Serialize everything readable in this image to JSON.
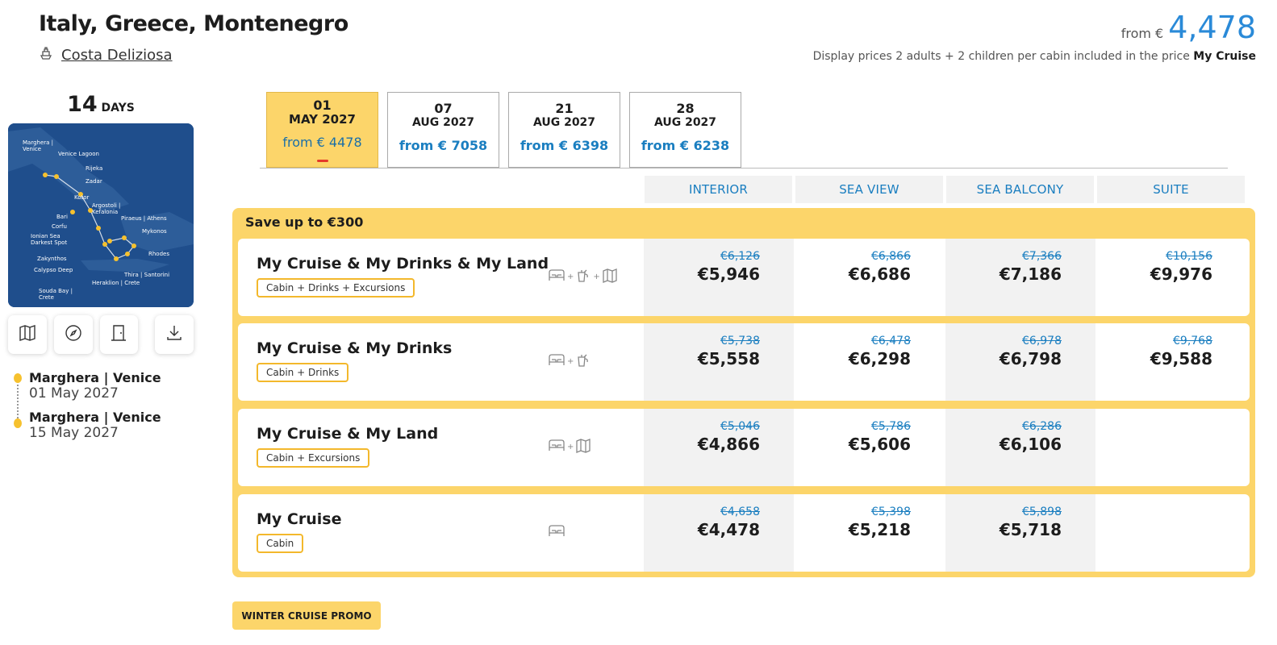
{
  "header": {
    "title": "Italy, Greece, Montenegro",
    "ship_name": "Costa Deliziosa",
    "from_label": "from €",
    "from_price": "4,478",
    "note_prefix": "Display prices 2 adults + 2 children per cabin included in the price",
    "note_bold": "My Cruise"
  },
  "left": {
    "days_number": "14",
    "days_label": "DAYS",
    "map_labels": [
      "Marghera | Venice",
      "Venice Lagoon",
      "Rijeka",
      "Zadar",
      "Kotor",
      "Argostoli | Kefalonia",
      "Bari",
      "Piraeus | Athens",
      "Corfu",
      "Mykonos",
      "Ionian Sea Darkest Spot",
      "Rhodes",
      "Zakynthos",
      "Calypso Deep",
      "Thira | Santorini",
      "Heraklion | Crete",
      "Souda Bay | Crete"
    ],
    "map_buttons": [
      "map-icon",
      "compass-icon",
      "door-icon",
      "download-icon"
    ],
    "itinerary": [
      {
        "port": "Marghera | Venice",
        "date": "01 May 2027"
      },
      {
        "port": "Marghera | Venice",
        "date": "15 May 2027"
      }
    ]
  },
  "date_tabs": [
    {
      "day": "01",
      "month": "MAY 2027",
      "from": "from € 4478",
      "active": true
    },
    {
      "day": "07",
      "month": "AUG 2027",
      "from": "from € 7058",
      "active": false
    },
    {
      "day": "21",
      "month": "AUG 2027",
      "from": "from € 6398",
      "active": false
    },
    {
      "day": "28",
      "month": "AUG 2027",
      "from": "from € 6238",
      "active": false
    }
  ],
  "columns": [
    "INTERIOR",
    "SEA VIEW",
    "SEA BALCONY",
    "SUITE"
  ],
  "promo": {
    "title": "Save up to €300",
    "packages": [
      {
        "name": "My Cruise & My Drinks & My Land",
        "tag": "Cabin + Drinks + Excursions",
        "icons": [
          "bed-icon",
          "drinks-icon",
          "map-icon"
        ],
        "prices": [
          {
            "old": "€6,126",
            "new": "€5,946"
          },
          {
            "old": "€6,866",
            "new": "€6,686"
          },
          {
            "old": "€7,366",
            "new": "€7,186"
          },
          {
            "old": "€10,156",
            "new": "€9,976"
          }
        ]
      },
      {
        "name": "My Cruise & My Drinks",
        "tag": "Cabin + Drinks",
        "icons": [
          "bed-icon",
          "drinks-icon"
        ],
        "prices": [
          {
            "old": "€5,738",
            "new": "€5,558"
          },
          {
            "old": "€6,478",
            "new": "€6,298"
          },
          {
            "old": "€6,978",
            "new": "€6,798"
          },
          {
            "old": "€9,768",
            "new": "€9,588"
          }
        ]
      },
      {
        "name": "My Cruise & My Land",
        "tag": "Cabin + Excursions",
        "icons": [
          "bed-icon",
          "map-icon"
        ],
        "prices": [
          {
            "old": "€5,046",
            "new": "€4,866"
          },
          {
            "old": "€5,786",
            "new": "€5,606"
          },
          {
            "old": "€6,286",
            "new": "€6,106"
          },
          {
            "old": "",
            "new": ""
          }
        ]
      },
      {
        "name": "My Cruise",
        "tag": "Cabin",
        "icons": [
          "bed-icon"
        ],
        "prices": [
          {
            "old": "€4,658",
            "new": "€4,478"
          },
          {
            "old": "€5,398",
            "new": "€5,218"
          },
          {
            "old": "€5,898",
            "new": "€5,718"
          },
          {
            "old": "",
            "new": ""
          }
        ]
      }
    ]
  },
  "winter_button": "WINTER CRUISE PROMO",
  "colors": {
    "accent_yellow": "#fcd56a",
    "link_blue": "#1a7ec0",
    "price_blue": "#2a8ad8"
  }
}
